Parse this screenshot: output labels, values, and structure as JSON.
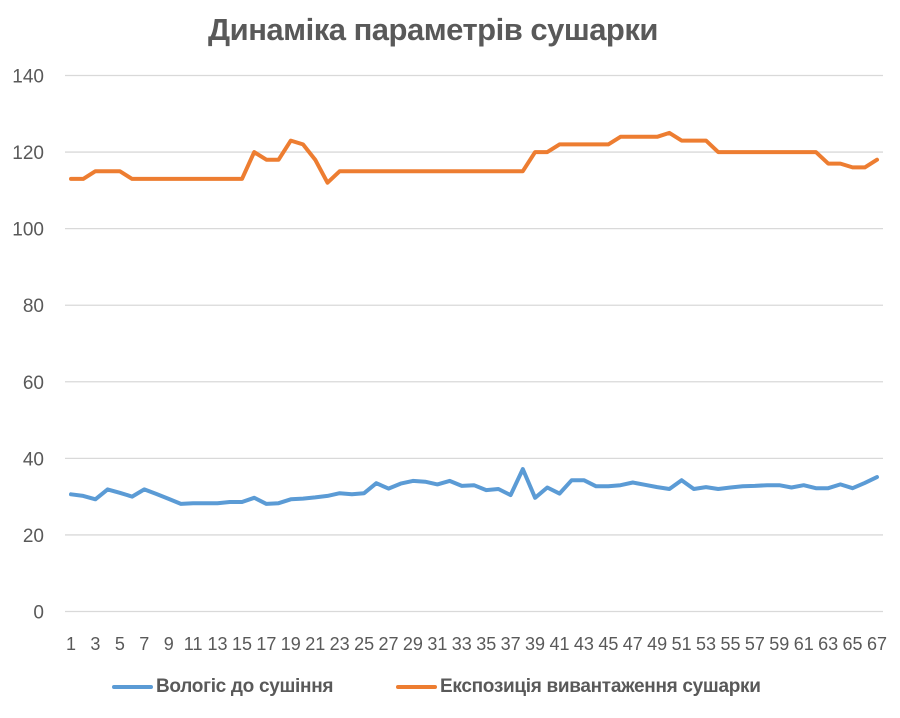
{
  "chart_data": {
    "type": "line",
    "title": "Динаміка параметрів сушарки",
    "xlabel": "",
    "ylabel": "",
    "ylim": [
      0,
      140
    ],
    "yticks": [
      0,
      20,
      40,
      60,
      80,
      100,
      120,
      140
    ],
    "grid": true,
    "legend_position": "bottom",
    "x": [
      1,
      2,
      3,
      4,
      5,
      6,
      7,
      8,
      9,
      10,
      11,
      12,
      13,
      14,
      15,
      16,
      17,
      18,
      19,
      20,
      21,
      22,
      23,
      24,
      25,
      26,
      27,
      28,
      29,
      30,
      31,
      32,
      33,
      34,
      35,
      36,
      37,
      38,
      39,
      40,
      41,
      42,
      43,
      44,
      45,
      46,
      47,
      48,
      49,
      50,
      51,
      52,
      53,
      54,
      55,
      56,
      57,
      58,
      59,
      60,
      61,
      62,
      63,
      64,
      65,
      66,
      67
    ],
    "xtick_labels": [
      "1",
      "3",
      "5",
      "7",
      "9",
      "11",
      "13",
      "15",
      "17",
      "19",
      "21",
      "23",
      "25",
      "27",
      "29",
      "31",
      "33",
      "35",
      "37",
      "39",
      "41",
      "43",
      "45",
      "47",
      "49",
      "51",
      "53",
      "55",
      "57",
      "59",
      "61",
      "63",
      "65",
      "67"
    ],
    "series": [
      {
        "name": "Вологіс до сушіння",
        "color": "#5B9BD5",
        "values": [
          30.6,
          30.2,
          29.3,
          31.9,
          31.0,
          30.0,
          31.9,
          30.7,
          29.4,
          28.1,
          28.3,
          28.3,
          28.3,
          28.6,
          28.6,
          29.7,
          28.1,
          28.3,
          29.3,
          29.5,
          29.8,
          30.2,
          30.9,
          30.6,
          30.9,
          33.5,
          32.1,
          33.4,
          34.1,
          33.9,
          33.2,
          34.1,
          32.8,
          33.0,
          31.7,
          32.0,
          30.4,
          37.2,
          29.7,
          32.4,
          30.8,
          34.3,
          34.3,
          32.7,
          32.7,
          33.0,
          33.7,
          33.1,
          32.5,
          32.0,
          34.3,
          32.0,
          32.5,
          32.0,
          32.4,
          32.7,
          32.8,
          33.0,
          33.0,
          32.4,
          33.0,
          32.2,
          32.2,
          33.2,
          32.2,
          33.6,
          35.1
        ]
      },
      {
        "name": "Експозиція вивантаження сушарки",
        "color": "#ED7D31",
        "values": [
          113,
          113,
          115,
          115,
          115,
          113,
          113,
          113,
          113,
          113,
          113,
          113,
          113,
          113,
          113,
          120,
          118,
          118,
          123,
          122,
          118,
          112,
          115,
          115,
          115,
          115,
          115,
          115,
          115,
          115,
          115,
          115,
          115,
          115,
          115,
          115,
          115,
          115,
          120,
          120,
          122,
          122,
          122,
          122,
          122,
          124,
          124,
          124,
          124,
          125,
          123,
          123,
          123,
          120,
          120,
          120,
          120,
          120,
          120,
          120,
          120,
          120,
          117,
          117,
          116,
          116,
          118
        ]
      }
    ]
  },
  "colors": {
    "gridline": "#D9D9D9",
    "text": "#595959"
  }
}
